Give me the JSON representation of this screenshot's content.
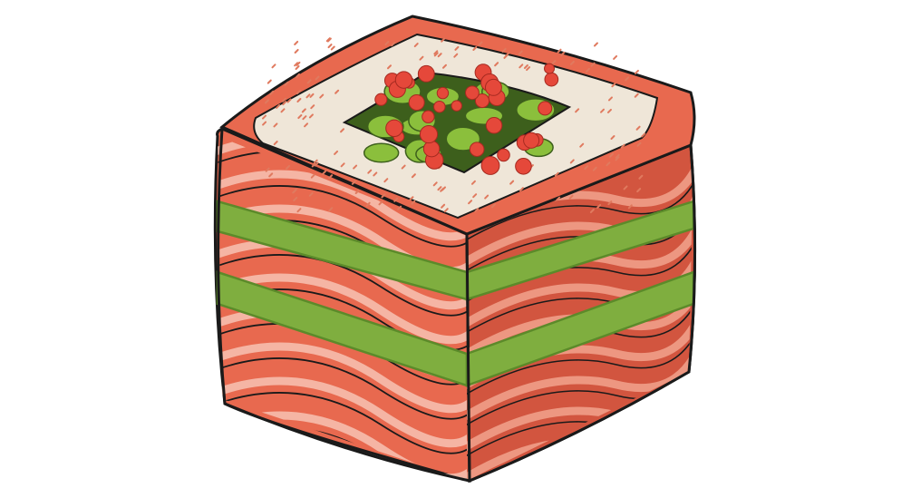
{
  "image": {
    "subject": "sushi-roll-illustration",
    "palette": {
      "background": "#ffffff",
      "salmon": "#e8694f",
      "salmon_dark": "#d2553f",
      "salmon_light": "#f4a892",
      "salmon_stripe": "#f7c3b3",
      "rice": "#efe6d8",
      "rice_speck": "#e07a5f",
      "nori_band": "#7fae3f",
      "nori_band_dark": "#5c8a2a",
      "avocado": "#8bbf3c",
      "avocado_dark": "#3d5f1c",
      "roe": "#e5483a",
      "outline": "#1a1a1a"
    }
  }
}
